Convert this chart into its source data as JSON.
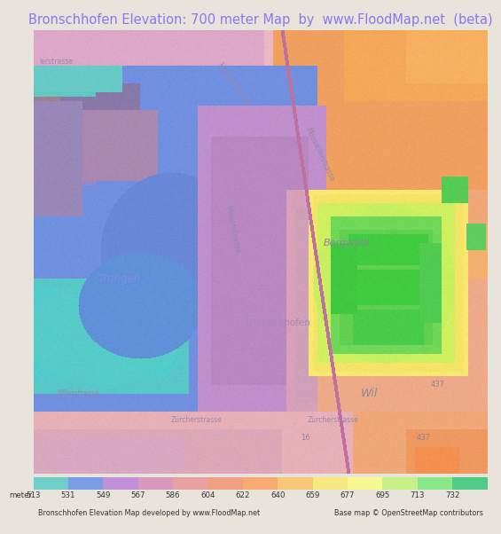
{
  "title": "Bronschhofen Elevation: 700 meter Map  by  www.FloodMap.net  (beta)",
  "title_color": "#8877ee",
  "title_bg": "#e8e4dc",
  "title_fontsize": 10.5,
  "background_color": "#e8e4dc",
  "colorbar_values": [
    513,
    531,
    549,
    567,
    586,
    604,
    622,
    640,
    659,
    677,
    695,
    713,
    732
  ],
  "colorbar_colors": [
    "#70cec8",
    "#7b9de8",
    "#c090d8",
    "#d898c0",
    "#e8a0a0",
    "#f0a080",
    "#f8aa70",
    "#f8c878",
    "#f8e880",
    "#f8f890",
    "#c8f088",
    "#88e888",
    "#50cc88"
  ],
  "bottom_left_text": "Bronschhofen Elevation Map developed by www.FloodMap.net",
  "bottom_right_text": "Base map © OpenStreetMap contributors",
  "meter_label": "meter",
  "fig_width": 5.12,
  "fig_height": 5.82,
  "map_regions": {
    "base_color": "#e8b8c0",
    "left_blue": "#7090e0",
    "left_blue_dark": "#6080d8",
    "teal1": "#60c8c0",
    "teal2": "#50cccc",
    "purple": "#c090d0",
    "pink": "#e0a8c0",
    "orange": "#f0a868",
    "orange2": "#f4b870",
    "yellow": "#f8e870",
    "lime": "#c8f060",
    "green": "#60d060",
    "green_dark": "#40c040",
    "top_right_orange": "#f4a060"
  }
}
